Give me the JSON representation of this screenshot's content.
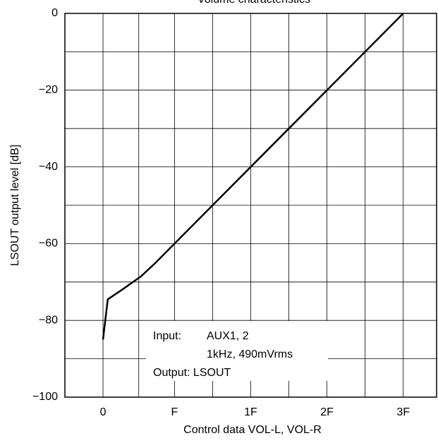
{
  "chart_data": {
    "type": "line",
    "title": "Volume characteristics",
    "x_label": "Control data VOL-L, VOL-R",
    "y_label": "LSOUT output level [dB]",
    "x": [
      0,
      1,
      4,
      8,
      11,
      15,
      63
    ],
    "series": [
      {
        "color": "#000000",
        "values": [
          -85,
          -74.5,
          -72,
          -68.5,
          -65,
          -60,
          0
        ]
      }
    ],
    "xlim": [
      -8,
      70
    ],
    "xticks": [
      0,
      {
        "value": 15,
        "label": "F"
      },
      {
        "value": 31,
        "label": "1F"
      },
      {
        "value": 47,
        "label": "2F"
      },
      {
        "value": 63,
        "label": "3F"
      }
    ],
    "ylim": [
      -100,
      0
    ],
    "yticks": [
      0,
      {
        "value": -20,
        "label": "−20"
      },
      {
        "value": -40,
        "label": "−40"
      },
      {
        "value": -60,
        "label": "−60"
      },
      {
        "value": -80,
        "label": "−80"
      },
      {
        "value": -100,
        "label": "−100"
      }
    ],
    "grid": true,
    "annotations": [
      "Input:",
      "AUX1, 2",
      "1kHz, 490mVrms",
      "Output: LSOUT"
    ]
  }
}
